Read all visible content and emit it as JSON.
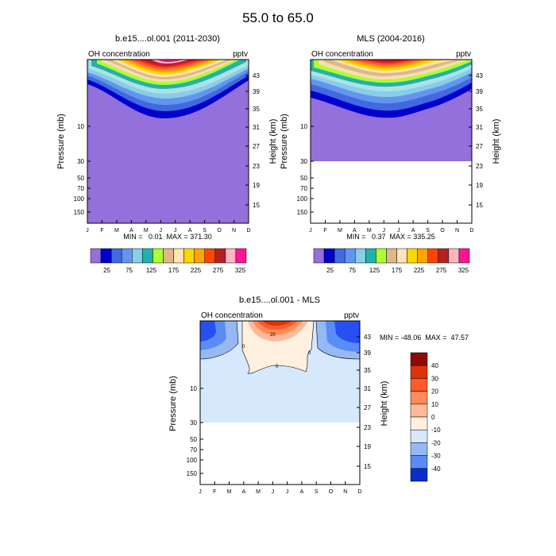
{
  "main_title": "55.0 to  65.0",
  "colors": {
    "fill_levels": [
      "#9370DB",
      "#0000CD",
      "#4169E1",
      "#6495ED",
      "#87CEEB",
      "#B0E0E6",
      "#20B2AA",
      "#ADFF2F",
      "#9ACD32",
      "#DEB887",
      "#F5DEB3",
      "#FFE4B5",
      "#FFD700",
      "#FFA500",
      "#FF6347",
      "#FF4500",
      "#DC143C",
      "#B22222",
      "#FFB6C1",
      "#FF1493"
    ],
    "diff_levels": [
      "#0A0A8C",
      "#0A2DC8",
      "#2850F0",
      "#5A8CF5",
      "#96B9F5",
      "#D6E8FB",
      "#FFF0E0",
      "#FFB99A",
      "#FF8C5A",
      "#FF5A28",
      "#E0320A",
      "#8C0A0A"
    ],
    "frame": "#000000"
  },
  "chart_data": [
    {
      "id": "model",
      "type": "contour",
      "title": "b.e15....ol.001 (2011-2030)",
      "left_label": "OH concentration",
      "right_label": "pptv",
      "xlabel": "",
      "ylabel": "Pressure (mb)",
      "ylabel_right": "Height (km)",
      "months": [
        "J",
        "F",
        "M",
        "A",
        "M",
        "J",
        "J",
        "A",
        "S",
        "O",
        "N",
        "D"
      ],
      "pressure_ticks": [
        "10",
        "30",
        "50",
        "70",
        "100",
        "150"
      ],
      "height_ticks": [
        "43",
        "39",
        "35",
        "31",
        "27",
        "23",
        "19",
        "15"
      ],
      "min": 0.01,
      "max": 371.3,
      "stats_text": "MIN =   0.01  MAX = 371.30",
      "colorbar_labels": [
        "25",
        "75",
        "125",
        "175",
        "225",
        "275",
        "325"
      ],
      "colorbar_levels": [
        0,
        25,
        50,
        75,
        100,
        125,
        150,
        175,
        200,
        225,
        250,
        275,
        300,
        325,
        350
      ]
    },
    {
      "id": "mls",
      "type": "contour",
      "title": "MLS (2004-2016)",
      "left_label": "OH concentration",
      "right_label": "pptv",
      "xlabel": "",
      "ylabel": "Pressure (mb)",
      "ylabel_right": "Height (km)",
      "months": [
        "J",
        "F",
        "M",
        "A",
        "M",
        "J",
        "J",
        "A",
        "S",
        "O",
        "N",
        "D"
      ],
      "pressure_ticks": [
        "10",
        "30",
        "50",
        "70",
        "100",
        "150"
      ],
      "height_ticks": [
        "43",
        "39",
        "35",
        "31",
        "27",
        "23",
        "19",
        "15"
      ],
      "min": 0.37,
      "max": 335.25,
      "stats_text": "MIN =   0.37  MAX = 335.25",
      "colorbar_labels": [
        "25",
        "75",
        "125",
        "175",
        "225",
        "275",
        "325"
      ],
      "colorbar_levels": [
        0,
        25,
        50,
        75,
        100,
        125,
        150,
        175,
        200,
        225,
        250,
        275,
        300,
        325,
        350
      ]
    },
    {
      "id": "diff",
      "type": "contour",
      "title": "b.e15....ol.001 - MLS",
      "left_label": "OH concentration",
      "right_label": "pptv",
      "xlabel": "",
      "ylabel": "Pressure (mb)",
      "ylabel_right": "Height (km)",
      "months": [
        "J",
        "F",
        "M",
        "A",
        "M",
        "J",
        "J",
        "A",
        "S",
        "O",
        "N",
        "D"
      ],
      "pressure_ticks": [
        "10",
        "30",
        "50",
        "70",
        "100",
        "150"
      ],
      "height_ticks": [
        "43",
        "39",
        "35",
        "31",
        "27",
        "23",
        "19",
        "15"
      ],
      "min": -48.06,
      "max": 47.57,
      "stats_text": "MIN = -48.06  MAX =  47.57",
      "contour_labels": [
        "0",
        "20",
        "0",
        "0"
      ],
      "colorbar_labels": [
        "40",
        "30",
        "20",
        "10",
        "0",
        "-10",
        "-20",
        "-30",
        "-40"
      ],
      "colorbar_levels": [
        -50,
        -40,
        -30,
        -20,
        -10,
        0,
        10,
        20,
        30,
        40,
        50
      ]
    }
  ]
}
